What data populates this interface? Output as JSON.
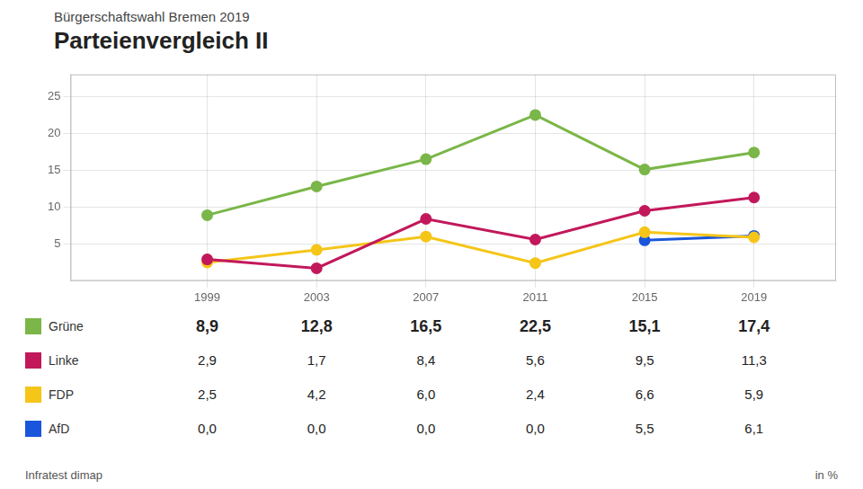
{
  "chart_data": {
    "type": "line",
    "subtitle": "Bürgerschaftswahl Bremen 2019",
    "title": "Parteienvergleich II",
    "source": "Infratest dimap",
    "unit": "in %",
    "x": [
      1999,
      2003,
      2007,
      2011,
      2015,
      2019
    ],
    "xlim": [
      1994,
      2022
    ],
    "xticks": [
      1999,
      2003,
      2007,
      2011,
      2015,
      2019
    ],
    "ylim": [
      0,
      28
    ],
    "yticks": [
      5,
      10,
      15,
      20,
      25
    ],
    "grid": true,
    "marker": "circle",
    "series": [
      {
        "name": "Grüne",
        "color": "#7ab648",
        "values": [
          8.9,
          12.8,
          16.5,
          22.5,
          15.1,
          17.4
        ],
        "value_labels": [
          "8,9",
          "12,8",
          "16,5",
          "22,5",
          "15,1",
          "17,4"
        ]
      },
      {
        "name": "Linke",
        "color": "#c2185b",
        "values": [
          2.9,
          1.7,
          8.4,
          5.6,
          9.5,
          11.3
        ],
        "value_labels": [
          "2,9",
          "1,7",
          "8,4",
          "5,6",
          "9,5",
          "11,3"
        ]
      },
      {
        "name": "FDP",
        "color": "#f5c518",
        "values": [
          2.5,
          4.2,
          6.0,
          2.4,
          6.6,
          5.9
        ],
        "value_labels": [
          "2,5",
          "4,2",
          "6,0",
          "2,4",
          "6,6",
          "5,9"
        ]
      },
      {
        "name": "AfD",
        "color": "#1a56db",
        "values": [
          null,
          null,
          null,
          null,
          5.5,
          6.1
        ],
        "value_labels": [
          "0,0",
          "0,0",
          "0,0",
          "0,0",
          "5,5",
          "6,1"
        ]
      }
    ]
  }
}
